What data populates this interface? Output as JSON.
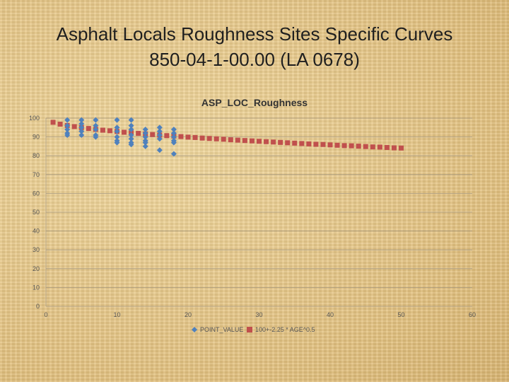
{
  "slide": {
    "title_line1": "Asphalt Locals Roughness Sites Specific Curves",
    "title_line2": "850-04-1-00.00 (LA 0678)"
  },
  "colors": {
    "point_series": "#4f81bd",
    "curve_series": "#c0504d",
    "gridline": "#a89a80",
    "axis_text": "#555555"
  },
  "chart_data": {
    "type": "scatter",
    "title": "ASP_LOC_Roughness",
    "xlim": [
      0,
      60
    ],
    "ylim": [
      0,
      100
    ],
    "x_ticks": [
      0,
      10,
      20,
      30,
      40,
      50,
      60
    ],
    "y_ticks": [
      0,
      10,
      20,
      30,
      40,
      50,
      60,
      70,
      80,
      90,
      100
    ],
    "grid": true,
    "legend_position": "bottom",
    "series": [
      {
        "name": "POINT_VALUE",
        "marker": "diamond",
        "points": [
          [
            3,
            99
          ],
          [
            3,
            96
          ],
          [
            3,
            94
          ],
          [
            3,
            92
          ],
          [
            3,
            91
          ],
          [
            5,
            99
          ],
          [
            5,
            97
          ],
          [
            5,
            95
          ],
          [
            5,
            93
          ],
          [
            5,
            91
          ],
          [
            7,
            99
          ],
          [
            7,
            96
          ],
          [
            7,
            94
          ],
          [
            7,
            91
          ],
          [
            7,
            90
          ],
          [
            10,
            99
          ],
          [
            10,
            95
          ],
          [
            10,
            93
          ],
          [
            10,
            90
          ],
          [
            10,
            88
          ],
          [
            10,
            87
          ],
          [
            12,
            99
          ],
          [
            12,
            96
          ],
          [
            12,
            94
          ],
          [
            12,
            91
          ],
          [
            12,
            89
          ],
          [
            12,
            87
          ],
          [
            12,
            86
          ],
          [
            14,
            94
          ],
          [
            14,
            92
          ],
          [
            14,
            90
          ],
          [
            14,
            88
          ],
          [
            14,
            87
          ],
          [
            14,
            85
          ],
          [
            16,
            95
          ],
          [
            16,
            93
          ],
          [
            16,
            91
          ],
          [
            16,
            89
          ],
          [
            16,
            83
          ],
          [
            18,
            94
          ],
          [
            18,
            92
          ],
          [
            18,
            90
          ],
          [
            18,
            88
          ],
          [
            18,
            87
          ],
          [
            18,
            81
          ]
        ]
      },
      {
        "name": "100+-2.25 * AGE^0.5",
        "marker": "square",
        "x": [
          1,
          2,
          3,
          4,
          5,
          6,
          7,
          8,
          9,
          10,
          11,
          12,
          13,
          14,
          15,
          16,
          17,
          18,
          19,
          20,
          21,
          22,
          23,
          24,
          25,
          26,
          27,
          28,
          29,
          30,
          31,
          32,
          33,
          34,
          35,
          36,
          37,
          38,
          39,
          40,
          41,
          42,
          43,
          44,
          45,
          46,
          47,
          48,
          49,
          50
        ],
        "y": [
          97.8,
          96.8,
          96.1,
          95.5,
          95.0,
          94.5,
          94.0,
          93.6,
          93.3,
          92.9,
          92.5,
          92.2,
          91.9,
          91.6,
          91.3,
          91.0,
          90.7,
          90.5,
          90.2,
          89.9,
          89.7,
          89.4,
          89.2,
          89.0,
          88.8,
          88.5,
          88.3,
          88.1,
          87.9,
          87.7,
          87.5,
          87.3,
          87.1,
          86.9,
          86.7,
          86.5,
          86.3,
          86.1,
          86.0,
          85.8,
          85.6,
          85.4,
          85.3,
          85.1,
          84.9,
          84.7,
          84.6,
          84.4,
          84.2,
          84.1
        ]
      }
    ]
  }
}
